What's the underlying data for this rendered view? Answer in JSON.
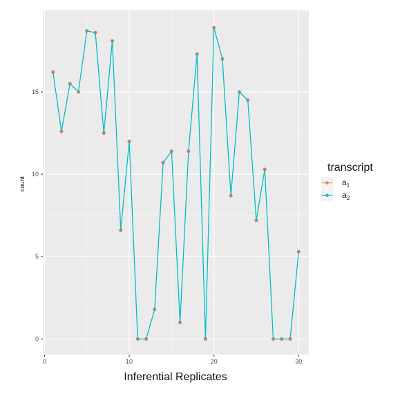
{
  "chart_data": {
    "type": "line",
    "title": "",
    "xlabel": "Inferential Replicates",
    "ylabel": "count",
    "x": [
      1,
      2,
      3,
      4,
      5,
      6,
      7,
      8,
      9,
      10,
      11,
      12,
      13,
      14,
      15,
      16,
      17,
      18,
      19,
      20,
      21,
      22,
      23,
      24,
      25,
      26,
      27,
      28,
      29,
      30
    ],
    "xlim": [
      -0.2,
      31.2
    ],
    "ylim": [
      -0.95,
      19.95
    ],
    "xticks": [
      0,
      10,
      20,
      30
    ],
    "xtick_labels": [
      "0",
      "10",
      "20",
      "30"
    ],
    "yticks": [
      0,
      5,
      10,
      15
    ],
    "ytick_labels": [
      "0",
      "5",
      "10",
      "15"
    ],
    "grid": true,
    "legend": {
      "title": "transcript",
      "position": "right"
    },
    "series": [
      {
        "name": "a",
        "name_subscript": "1",
        "color": "#F8766D",
        "values": [
          16.2,
          12.6,
          15.5,
          15.0,
          18.7,
          18.6,
          12.5,
          18.1,
          6.6,
          12.0,
          0,
          0,
          1.8,
          10.7,
          11.4,
          1.0,
          11.4,
          17.3,
          0,
          18.9,
          17.0,
          8.7,
          15.0,
          14.5,
          7.2,
          10.3,
          0,
          0,
          0,
          5.3
        ]
      },
      {
        "name": "a",
        "name_subscript": "2",
        "color": "#00BFC4",
        "values": [
          16.2,
          12.6,
          15.5,
          15.0,
          18.7,
          18.6,
          12.5,
          18.1,
          6.6,
          12.0,
          0,
          0,
          1.8,
          10.7,
          11.4,
          1.0,
          11.4,
          17.3,
          0,
          18.9,
          17.0,
          8.7,
          15.0,
          14.5,
          7.2,
          10.3,
          0,
          0,
          0,
          5.3
        ]
      }
    ]
  },
  "colors": {
    "panel_background": "#EBEBEB",
    "grid_major": "#FFFFFF",
    "grid_minor": "#F5F5F5"
  }
}
